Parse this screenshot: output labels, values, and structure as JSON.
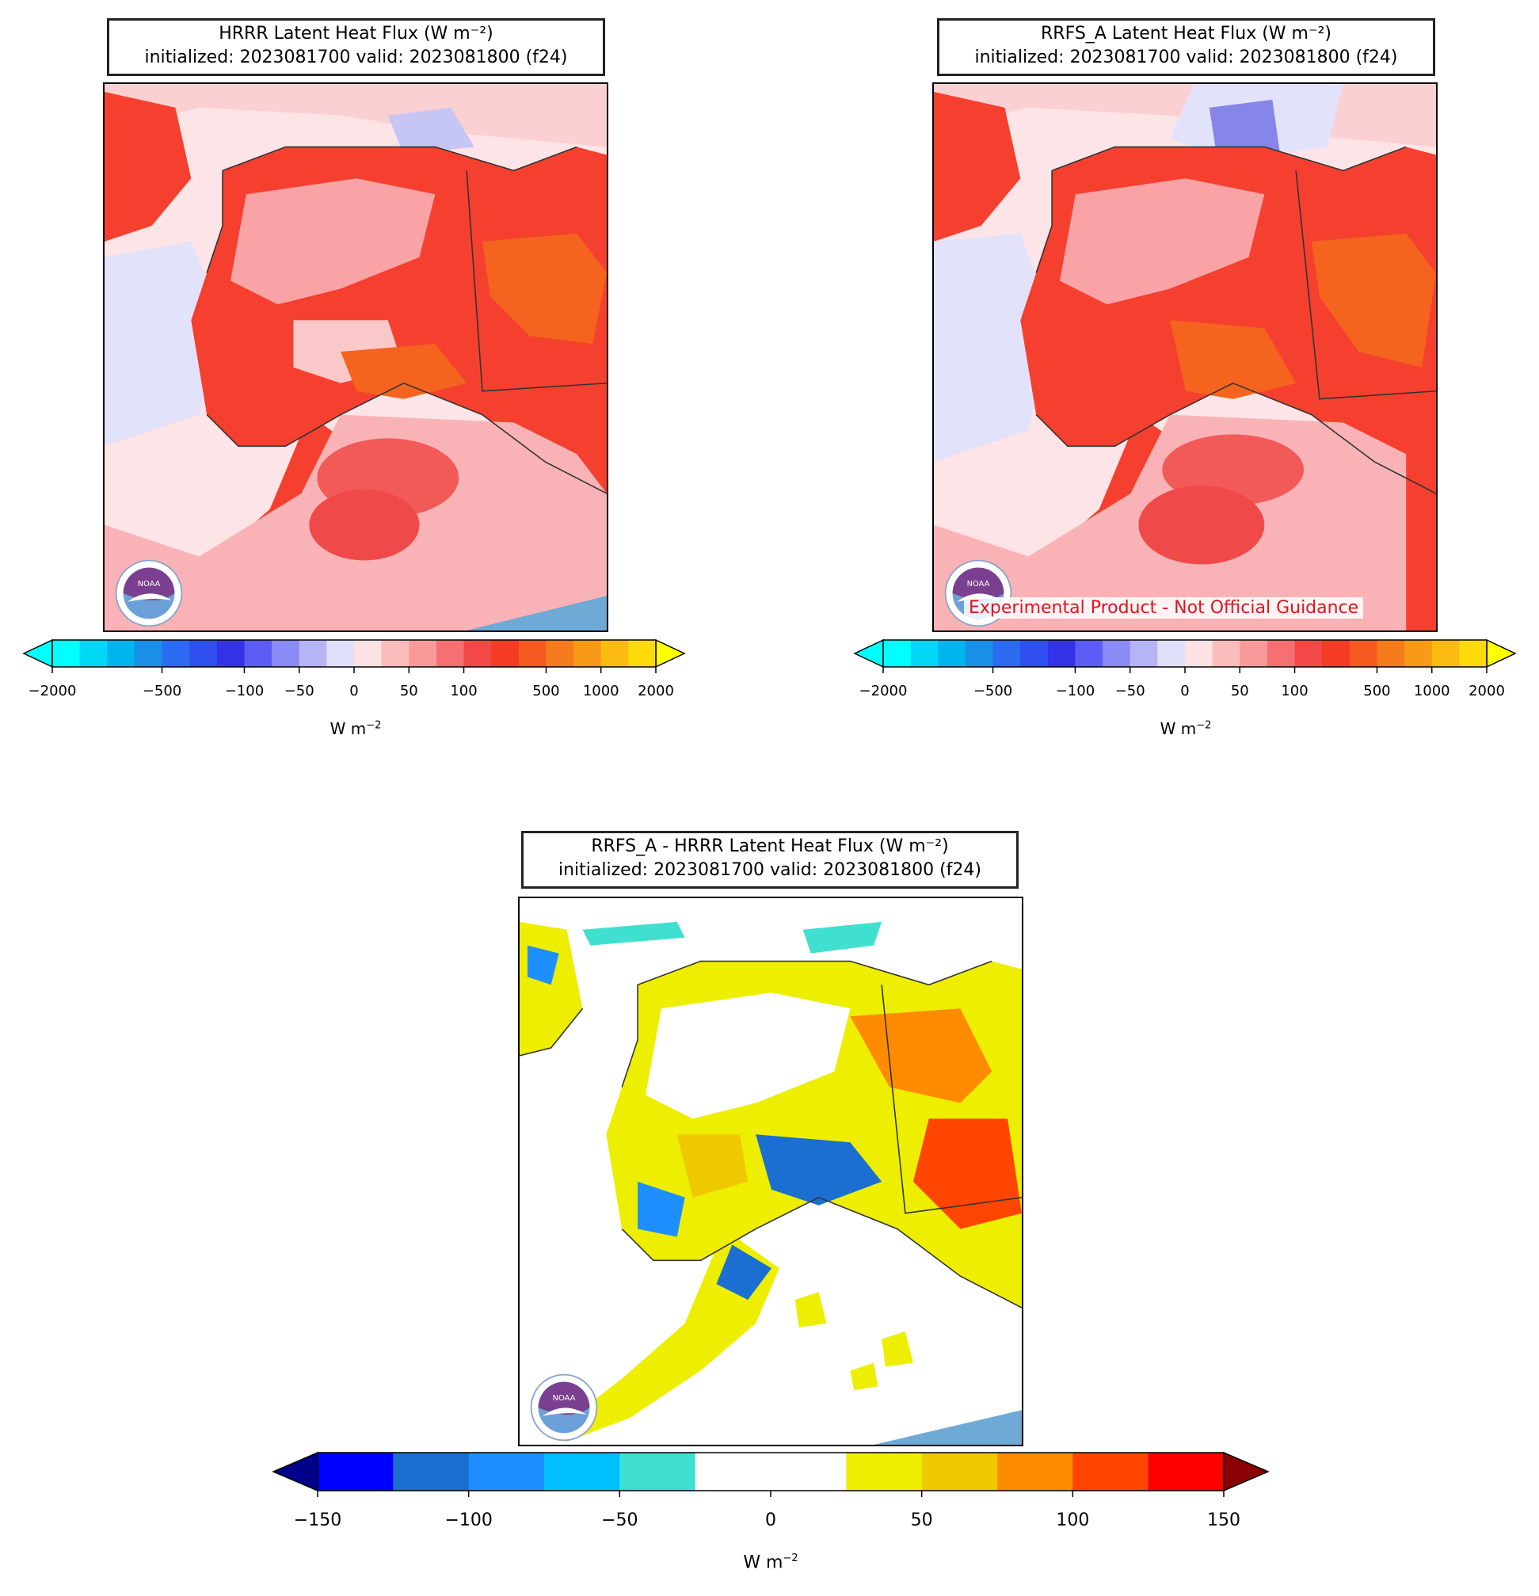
{
  "panels": [
    {
      "id": "hrrr",
      "title_line1": "HRRR Latent Heat Flux (W m⁻²)",
      "title_line2": "initialized: 2023081700 valid: 2023081800 (f24)"
    },
    {
      "id": "rrfs",
      "title_line1": "RRFS_A Latent Heat Flux (W m⁻²)",
      "title_line2": "initialized: 2023081700 valid: 2023081800 (f24)",
      "disclaimer": "Experimental Product - Not Official Guidance"
    },
    {
      "id": "diff",
      "title_line1": "RRFS_A - HRRR Latent Heat Flux (W m⁻²)",
      "title_line2": "initialized: 2023081700 valid: 2023081800 (f24)"
    }
  ],
  "colorbars": {
    "flux": {
      "unit": "W m⁻²",
      "ticks": [
        "−2000",
        "−500",
        "−100",
        "−50",
        "0",
        "50",
        "100",
        "500",
        "1000",
        "2000"
      ],
      "colors": [
        "#00ffff",
        "#00d8f5",
        "#00b5ee",
        "#1a8fe6",
        "#2a6bf0",
        "#2f4ef0",
        "#3232e6",
        "#5c5cf5",
        "#8a8af5",
        "#b5b5f5",
        "#e0e0fa",
        "#fde2e4",
        "#fbbcbc",
        "#f99a9a",
        "#f57070",
        "#f24848",
        "#f53a25",
        "#f55a20",
        "#f57c1c",
        "#f89a18",
        "#fbbb10",
        "#fddb0a"
      ],
      "extend_low_color": "#00ffff",
      "extend_high_color": "#ffff00"
    },
    "diff": {
      "unit": "W m⁻²",
      "ticks": [
        "−150",
        "−100",
        "−50",
        "0",
        "50",
        "100",
        "150"
      ],
      "colors": [
        "#0000ff",
        "#1a6fd0",
        "#1e8fff",
        "#00bfff",
        "#40e0d0",
        "#ffffff",
        "#ffffff",
        "#eeee00",
        "#eec900",
        "#ff8c00",
        "#ff4500",
        "#ff0000"
      ],
      "extend_low_color": "#00008b",
      "extend_high_color": "#8b0000"
    }
  },
  "logo": {
    "text": "NOAA",
    "icon": "noaa-logo-icon"
  },
  "map_colors": {
    "ocean_neutral": "#fde4e6",
    "ocean_negative": "#e2e2fb",
    "land_high": "#f5402f",
    "land_mid": "#f77f7f",
    "land_orange": "#f4641e",
    "diff_yellow": "#eeee00",
    "diff_blue": "#1a6fd0"
  }
}
